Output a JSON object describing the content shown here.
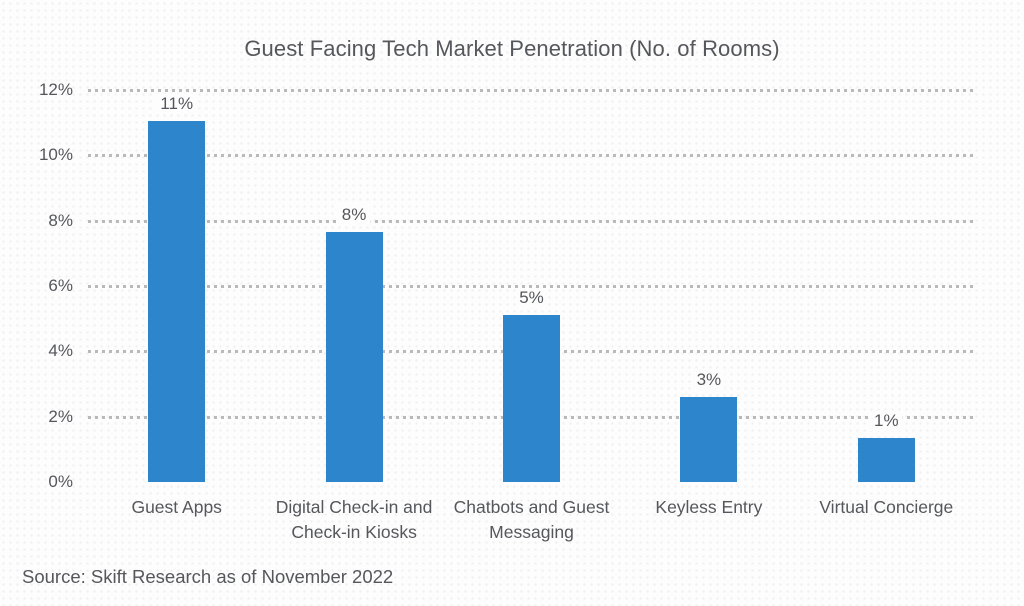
{
  "chart_data": {
    "type": "bar",
    "title": "Guest Facing Tech Market Penetration (No. of Rooms)",
    "categories": [
      "Guest Apps",
      "Digital Check-in and Check-in Kiosks",
      "Chatbots and Guest Messaging",
      "Keyless Entry",
      "Virtual Concierge"
    ],
    "values": [
      11,
      8,
      5,
      3,
      1
    ],
    "data_labels": [
      "11%",
      "8%",
      "5%",
      "3%",
      "1%"
    ],
    "bar_heights_pct": [
      11.05,
      7.65,
      5.1,
      2.6,
      1.35
    ],
    "xlabel": "",
    "ylabel": "",
    "ylim": [
      0,
      12
    ],
    "y_ticks": [
      0,
      2,
      4,
      6,
      8,
      10,
      12
    ],
    "y_tick_labels": [
      "0%",
      "2%",
      "4%",
      "6%",
      "8%",
      "10%",
      "12%"
    ],
    "grid": "horizontal-dotted",
    "legend": "none",
    "source": "Source: Skift Research as of November 2022",
    "colors": {
      "bar": "#2d86cb",
      "text": "#56575c",
      "gridline": "#b9b9b9",
      "background": "#fdfdfd"
    }
  }
}
